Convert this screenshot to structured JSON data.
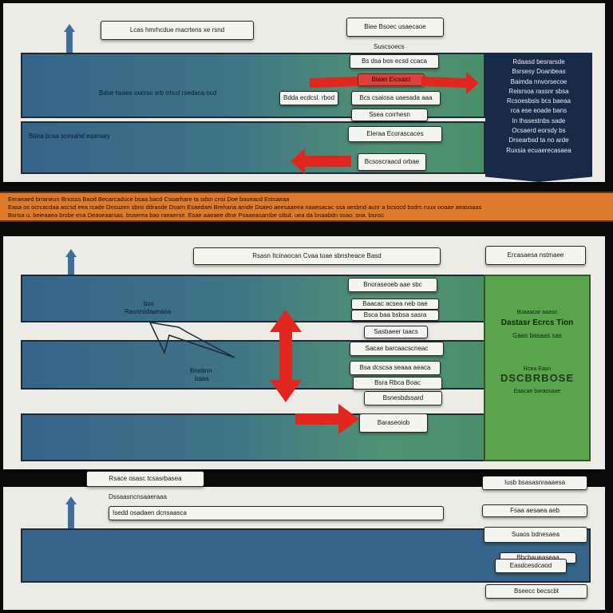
{
  "section1": {
    "title": "Lcas hmrhcdue macrtens xe rsnd",
    "top_right_label": "Biee Bsoec usaecaoe",
    "floating_label": "Suscsoecs",
    "band1_text": "Bdse hsaes oocrsc srb rrhcd rsedaca ocd",
    "band1_box": "Bdda ecdcsl. rbod",
    "band2_text": "Bdea bcsa scesahd easnsey",
    "labels": [
      "Bs dsa bos ecsd ccaca",
      "Biaiei Eicsaici",
      "Bcs csaiosa uaesada aaa",
      "Ssea corrhesn",
      "Eleraa Ecorascaces",
      "Bcsoscraacd orbae"
    ],
    "legend_lines": [
      "Rdaasd besrarsde",
      "Bsrsesy Doanbeas",
      "Baimda nnvorsecoe",
      "Reisrsoa rassnr sbsa",
      "Rcsoesbsis bcs baeaa",
      "rca ese eoade bans",
      "In thssestnbs sade",
      "Ocsaerd eorsdy bs",
      "Drsearbsd ta no arde",
      "Ruxsia ecuaerecasaea"
    ]
  },
  "orange_banner": {
    "lines": [
      "Eeraeaed brraneun Bnosss Baod Becarcaduce bsaa bacd Csoarhare ta sdsn cnsi Doe baueacd Estsaeaa",
      "Easa os ocrcacdaa ascsd eea rcade Dnsuzen sbns ddrasde Doarn Esaedaei Brehana arnde Dsaeo aeesaaeea naaesacac ssa aesbnd aunr a bcsocd bsdrs ruua ooaae aeasoaas",
      "Bsnsa u. beieaaea brsbe ena Deaseaarsas, bsaerea bao raeaerse. Esae aaeaee dtne Psaaeasarnbe sdsd. uea da bnaabdn ssao, sna. bsnsc"
    ]
  },
  "section2": {
    "title": "Rsasn Itcinaocan Cvaa toae sbnsheace Basd",
    "legend_title": "Ercasaesa nstmaee",
    "band1_text_a": "bos",
    "band1_text_b": "Rasnnsdaanaoa",
    "band2_text_a": "Bnebnn",
    "band2_text_b": "baaa",
    "labels": [
      "Bnoraseoeb aae sbc",
      "Baacac acsea neb oae",
      "Bsca baa bsbsa sasra",
      "Sasbaeer taacs",
      "Sacae barcaacscneac",
      "Bsa dcscsa seaaa aeaca",
      "Bsra Rbca Boac",
      "Bsnesbdssard",
      "Baraseoiob"
    ],
    "legend_lines": [
      "Bsaaacar aaasn",
      "Dastasr Ecrcs Tion",
      "Gaas basaas sas"
    ],
    "legend_logo": "DSCBRBOSE",
    "legend_logo_top": "Rcea Easn",
    "legend_footer": "Eaacae baraosaae"
  },
  "section3": {
    "tab_label": "Rsace osasc tcsasrbasea",
    "subtitle": "Dssaasncnsaaeraaa",
    "input_text": "Isedd osadaen dcnsaasca",
    "right_labels": [
      "Iusb bsasasnraaaesa",
      "Fsaa aesaea aeb",
      "Suaos bdnesaea",
      "Bbcbaueaseaa",
      "Easdcesdcaod",
      "Bseecc becscbt"
    ]
  }
}
